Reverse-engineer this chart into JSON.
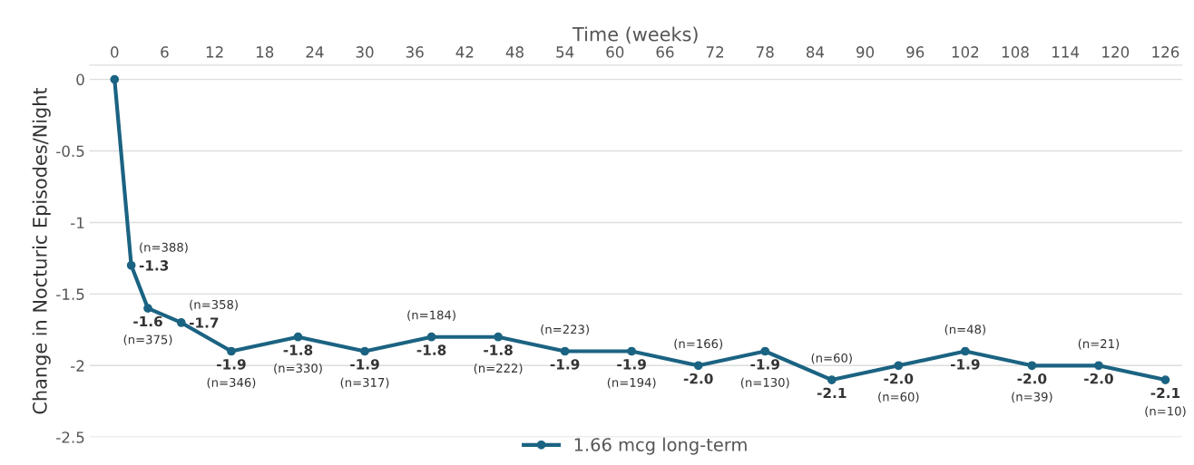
{
  "chart_data": {
    "type": "line",
    "xlabel": "Time (weeks)",
    "ylabel": "Change in Nocturic Episodes/Night",
    "x": [
      0,
      2,
      4,
      8,
      14,
      22,
      30,
      38,
      46,
      54,
      62,
      70,
      78,
      86,
      94,
      102,
      110,
      118,
      126
    ],
    "series": [
      {
        "name": "1.66 mcg long-term",
        "color": "#1b6382",
        "values": [
          0,
          -1.3,
          -1.6,
          -1.7,
          -1.9,
          -1.8,
          -1.9,
          -1.8,
          -1.8,
          -1.9,
          -1.9,
          -2.0,
          -1.9,
          -2.1,
          -2.0,
          -1.9,
          -2.0,
          -2.0,
          -2.1
        ],
        "value_labels": [
          null,
          "-1.3",
          "-1.6",
          "-1.7",
          "-1.9",
          "-1.8",
          "-1.9",
          "-1.8",
          "-1.8",
          "-1.9",
          "-1.9",
          "-2.0",
          "-1.9",
          "-2.1",
          "-2.0",
          "-1.9",
          "-2.0",
          "-2.0",
          "-2.1"
        ]
      }
    ],
    "annotations": [
      {
        "text": "(n=388)",
        "x": 2,
        "y": -1.3
      },
      {
        "text": "(n=375)",
        "x": 4,
        "y": -1.6
      },
      {
        "text": "(n=358)",
        "x": 8,
        "y": -1.7
      },
      {
        "text": "(n=346)",
        "x": 14,
        "y": -1.9
      },
      {
        "text": "(n=330)",
        "x": 22,
        "y": -1.8
      },
      {
        "text": "(n=317)",
        "x": 30,
        "y": -1.9
      },
      {
        "text": "(n=184)",
        "x": 38,
        "y": -1.8
      },
      {
        "text": "(n=222)",
        "x": 46,
        "y": -1.8
      },
      {
        "text": "(n=223)",
        "x": 54,
        "y": -1.9
      },
      {
        "text": "(n=194)",
        "x": 62,
        "y": -1.9
      },
      {
        "text": "(n=166)",
        "x": 70,
        "y": -2.0
      },
      {
        "text": "(n=130)",
        "x": 78,
        "y": -1.9
      },
      {
        "text": "(n=60)",
        "x": 86,
        "y": -2.1
      },
      {
        "text": "(n=60)",
        "x": 94,
        "y": -2.0
      },
      {
        "text": "(n=48)",
        "x": 102,
        "y": -1.9
      },
      {
        "text": "(n=39)",
        "x": 110,
        "y": -2.0
      },
      {
        "text": "(n=21)",
        "x": 118,
        "y": -2.0
      },
      {
        "text": "(n=10)",
        "x": 126,
        "y": -2.1
      }
    ],
    "xlim": [
      -3,
      128
    ],
    "xticks": [
      0,
      6,
      12,
      18,
      24,
      30,
      36,
      42,
      48,
      54,
      60,
      66,
      72,
      78,
      84,
      90,
      96,
      102,
      108,
      114,
      120,
      126
    ],
    "ylim": [
      -2.5,
      0.1
    ],
    "yticks": [
      0,
      -0.5,
      -1,
      -1.5,
      -2,
      -2.5
    ],
    "grid": "y",
    "legend": "bottom",
    "marker": "circle",
    "line_style": "solid"
  }
}
